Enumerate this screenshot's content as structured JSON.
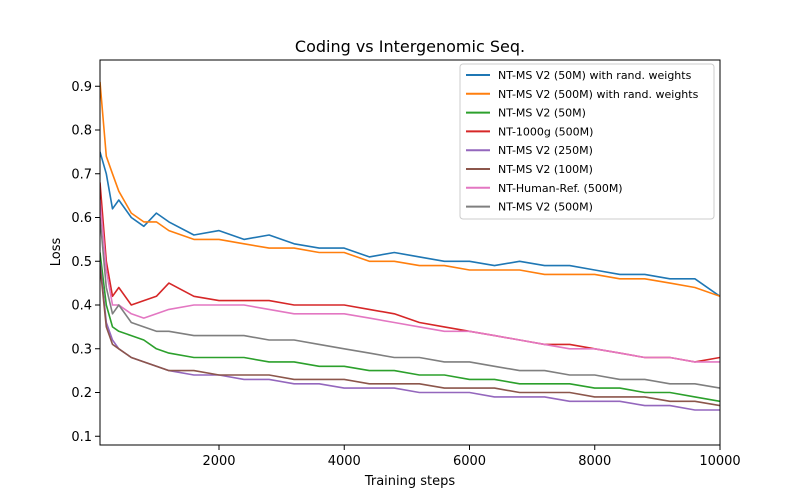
{
  "chart_data": {
    "type": "line",
    "title": "Coding vs Intergenomic Seq.",
    "xlabel": "Training steps",
    "ylabel": "Loss",
    "xlim": [
      100,
      10000
    ],
    "ylim": [
      0.08,
      0.96
    ],
    "xticks": [
      2000,
      4000,
      6000,
      8000,
      10000
    ],
    "yticks": [
      0.1,
      0.2,
      0.3,
      0.4,
      0.5,
      0.6,
      0.7,
      0.8,
      0.9
    ],
    "grid": false,
    "legend_position": "top-right",
    "x": [
      100,
      200,
      300,
      400,
      600,
      800,
      1000,
      1200,
      1600,
      2000,
      2400,
      2800,
      3200,
      3600,
      4000,
      4400,
      4800,
      5200,
      5600,
      6000,
      6400,
      6800,
      7200,
      7600,
      8000,
      8400,
      8800,
      9200,
      9600,
      10000
    ],
    "series": [
      {
        "name": "NT-MS V2 (50M) with rand. weights",
        "color": "#1f77b4",
        "values": [
          0.75,
          0.7,
          0.62,
          0.64,
          0.6,
          0.58,
          0.61,
          0.59,
          0.56,
          0.57,
          0.55,
          0.56,
          0.54,
          0.53,
          0.53,
          0.51,
          0.52,
          0.51,
          0.5,
          0.5,
          0.49,
          0.5,
          0.49,
          0.49,
          0.48,
          0.47,
          0.47,
          0.46,
          0.46,
          0.42
        ]
      },
      {
        "name": "NT-MS V2 (500M) with rand. weights",
        "color": "#ff7f0e",
        "values": [
          0.91,
          0.74,
          0.7,
          0.66,
          0.61,
          0.59,
          0.59,
          0.57,
          0.55,
          0.55,
          0.54,
          0.53,
          0.53,
          0.52,
          0.52,
          0.5,
          0.5,
          0.49,
          0.49,
          0.48,
          0.48,
          0.48,
          0.47,
          0.47,
          0.47,
          0.46,
          0.46,
          0.45,
          0.44,
          0.42
        ]
      },
      {
        "name": "NT-MS V2 (50M)",
        "color": "#2ca02c",
        "values": [
          0.52,
          0.4,
          0.35,
          0.34,
          0.33,
          0.32,
          0.3,
          0.29,
          0.28,
          0.28,
          0.28,
          0.27,
          0.27,
          0.26,
          0.26,
          0.25,
          0.25,
          0.24,
          0.24,
          0.23,
          0.23,
          0.22,
          0.22,
          0.22,
          0.21,
          0.21,
          0.2,
          0.2,
          0.19,
          0.18
        ]
      },
      {
        "name": "NT-1000g (500M)",
        "color": "#d62728",
        "values": [
          0.68,
          0.5,
          0.42,
          0.44,
          0.4,
          0.41,
          0.42,
          0.45,
          0.42,
          0.41,
          0.41,
          0.41,
          0.4,
          0.4,
          0.4,
          0.39,
          0.38,
          0.36,
          0.35,
          0.34,
          0.33,
          0.32,
          0.31,
          0.31,
          0.3,
          0.29,
          0.28,
          0.28,
          0.27,
          0.28
        ]
      },
      {
        "name": "NT-MS V2 (250M)",
        "color": "#9467bd",
        "values": [
          0.5,
          0.36,
          0.32,
          0.3,
          0.28,
          0.27,
          0.26,
          0.25,
          0.24,
          0.24,
          0.23,
          0.23,
          0.22,
          0.22,
          0.21,
          0.21,
          0.21,
          0.2,
          0.2,
          0.2,
          0.19,
          0.19,
          0.19,
          0.18,
          0.18,
          0.18,
          0.17,
          0.17,
          0.16,
          0.16
        ]
      },
      {
        "name": "NT-MS V2 (100M)",
        "color": "#8c564b",
        "values": [
          0.49,
          0.35,
          0.31,
          0.3,
          0.28,
          0.27,
          0.26,
          0.25,
          0.25,
          0.24,
          0.24,
          0.24,
          0.23,
          0.23,
          0.23,
          0.22,
          0.22,
          0.22,
          0.21,
          0.21,
          0.21,
          0.2,
          0.2,
          0.2,
          0.19,
          0.19,
          0.19,
          0.18,
          0.18,
          0.17
        ]
      },
      {
        "name": "NT-Human-Ref. (500M)",
        "color": "#e377c2",
        "values": [
          0.64,
          0.48,
          0.4,
          0.4,
          0.38,
          0.37,
          0.38,
          0.39,
          0.4,
          0.4,
          0.4,
          0.39,
          0.38,
          0.38,
          0.38,
          0.37,
          0.36,
          0.35,
          0.34,
          0.34,
          0.33,
          0.32,
          0.31,
          0.3,
          0.3,
          0.29,
          0.28,
          0.28,
          0.27,
          0.27
        ]
      },
      {
        "name": "NT-MS V2 (500M)",
        "color": "#7f7f7f",
        "values": [
          0.6,
          0.44,
          0.38,
          0.4,
          0.36,
          0.35,
          0.34,
          0.34,
          0.33,
          0.33,
          0.33,
          0.32,
          0.32,
          0.31,
          0.3,
          0.29,
          0.28,
          0.28,
          0.27,
          0.27,
          0.26,
          0.25,
          0.25,
          0.24,
          0.24,
          0.23,
          0.23,
          0.22,
          0.22,
          0.21
        ]
      }
    ]
  }
}
